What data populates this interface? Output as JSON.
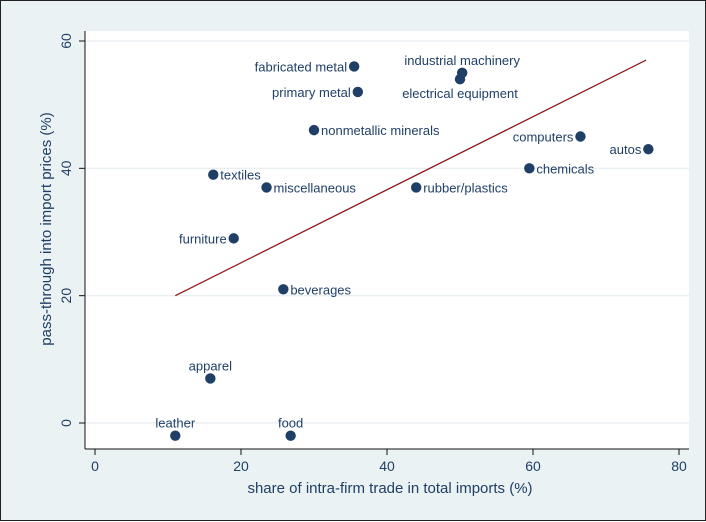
{
  "chart_data": {
    "type": "scatter",
    "title": "",
    "xlabel": "share of intra-firm trade in total imports (%)",
    "ylabel": "pass-through into import prices (%)",
    "xlim": [
      0,
      80
    ],
    "ylim": [
      -3,
      62
    ],
    "xticks": [
      "0",
      "20",
      "40",
      "60",
      "80"
    ],
    "yticks": [
      "0",
      "20",
      "40",
      "60"
    ],
    "grid": true,
    "colors": {
      "marker": "#1f3f66",
      "label": "#1f3f66",
      "fit": "#8b1a1a",
      "plot_bg": "#ffffff",
      "outer_bg": "#eaf2f3",
      "grid": "#e6eef0"
    },
    "points": [
      {
        "label": "fabricated metal",
        "x": 35.5,
        "y": 56,
        "label_side": "left"
      },
      {
        "label": "industrial machinery",
        "x": 50.3,
        "y": 55,
        "label_side": "above"
      },
      {
        "label": "electrical equipment",
        "x": 50.0,
        "y": 54,
        "label_side": "below"
      },
      {
        "label": "primary metal",
        "x": 36.0,
        "y": 52,
        "label_side": "left"
      },
      {
        "label": "nonmetallic minerals",
        "x": 30.0,
        "y": 46,
        "label_side": "right"
      },
      {
        "label": "computers",
        "x": 66.5,
        "y": 45,
        "label_side": "left"
      },
      {
        "label": "autos",
        "x": 75.8,
        "y": 43,
        "label_side": "left"
      },
      {
        "label": "chemicals",
        "x": 59.5,
        "y": 40,
        "label_side": "right"
      },
      {
        "label": "textiles",
        "x": 16.2,
        "y": 39,
        "label_side": "right"
      },
      {
        "label": "miscellaneous",
        "x": 23.5,
        "y": 37,
        "label_side": "right"
      },
      {
        "label": "rubber/plastics",
        "x": 44.0,
        "y": 37,
        "label_side": "right"
      },
      {
        "label": "furniture",
        "x": 19.0,
        "y": 29,
        "label_side": "left"
      },
      {
        "label": "beverages",
        "x": 25.8,
        "y": 21,
        "label_side": "right"
      },
      {
        "label": "apparel",
        "x": 15.8,
        "y": 7,
        "label_side": "above"
      },
      {
        "label": "leather",
        "x": 11.0,
        "y": -2,
        "label_side": "above"
      },
      {
        "label": "food",
        "x": 26.8,
        "y": -2,
        "label_side": "above"
      }
    ],
    "fit_line": {
      "x": [
        11,
        75.5
      ],
      "y": [
        20,
        57
      ]
    }
  }
}
